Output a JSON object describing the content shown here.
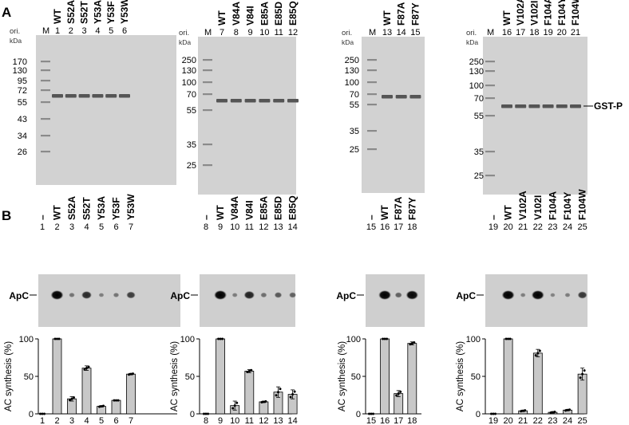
{
  "panelA": {
    "label": "A",
    "gst_label": "GST-P",
    "gels": [
      {
        "ori": "ori.",
        "kda": "kDa",
        "marker_lane": "M",
        "markers": [
          "170",
          "130",
          "95",
          "72",
          "55",
          "43",
          "34",
          "26"
        ],
        "lanes": [
          {
            "name": "WT",
            "num": "1"
          },
          {
            "name": "S52A",
            "num": "2"
          },
          {
            "name": "S52T",
            "num": "3"
          },
          {
            "name": "Y53A",
            "num": "4"
          },
          {
            "name": "Y53F",
            "num": "5"
          },
          {
            "name": "Y53W",
            "num": "6"
          }
        ]
      },
      {
        "ori": "ori.",
        "kda": "kDa",
        "marker_lane": "M",
        "markers": [
          "250",
          "130",
          "100",
          "70",
          "55",
          "35",
          "25"
        ],
        "lanes": [
          {
            "name": "WT",
            "num": "7"
          },
          {
            "name": "V84A",
            "num": "8"
          },
          {
            "name": "V84I",
            "num": "9"
          },
          {
            "name": "E85A",
            "num": "10"
          },
          {
            "name": "E85D",
            "num": "11"
          },
          {
            "name": "E85Q",
            "num": "12"
          }
        ]
      },
      {
        "ori": "ori.",
        "kda": "kDa",
        "marker_lane": "M",
        "markers": [
          "250",
          "130",
          "100",
          "70",
          "55",
          "35",
          "25"
        ],
        "lanes": [
          {
            "name": "WT",
            "num": "13"
          },
          {
            "name": "F87A",
            "num": "14"
          },
          {
            "name": "F87Y",
            "num": "15"
          }
        ]
      },
      {
        "ori": "ori.",
        "kda": "kDa",
        "marker_lane": "M",
        "markers": [
          "250",
          "130",
          "100",
          "70",
          "55",
          "35",
          "25"
        ],
        "lanes": [
          {
            "name": "WT",
            "num": "16"
          },
          {
            "name": "V102A",
            "num": "17"
          },
          {
            "name": "V102I",
            "num": "18"
          },
          {
            "name": "F104A",
            "num": "19"
          },
          {
            "name": "F104Y",
            "num": "20"
          },
          {
            "name": "F104W",
            "num": "21"
          }
        ]
      }
    ]
  },
  "panelB": {
    "label": "B",
    "band_label": "ApC",
    "ylabel": "AC synthesis (%)",
    "yticks": [
      "0",
      "50",
      "100"
    ],
    "groups": [
      {
        "lanes": [
          {
            "name": "–",
            "num": "1"
          },
          {
            "name": "WT",
            "num": "2"
          },
          {
            "name": "S52A",
            "num": "3"
          },
          {
            "name": "S52T",
            "num": "4"
          },
          {
            "name": "Y53A",
            "num": "5"
          },
          {
            "name": "Y53F",
            "num": "6"
          },
          {
            "name": "Y53W",
            "num": "7"
          }
        ],
        "spots": [
          0,
          1,
          0.15,
          0.7,
          0.08,
          0.15,
          0.55
        ]
      },
      {
        "lanes": [
          {
            "name": "–",
            "num": "8"
          },
          {
            "name": "WT",
            "num": "9"
          },
          {
            "name": "V84A",
            "num": "10"
          },
          {
            "name": "V84I",
            "num": "11"
          },
          {
            "name": "E85A",
            "num": "12"
          },
          {
            "name": "E85D",
            "num": "13"
          },
          {
            "name": "E85Q",
            "num": "14"
          }
        ],
        "spots": [
          0,
          1,
          0.1,
          0.75,
          0.2,
          0.35,
          0.3
        ]
      },
      {
        "lanes": [
          {
            "name": "–",
            "num": "15"
          },
          {
            "name": "WT",
            "num": "16"
          },
          {
            "name": "F87A",
            "num": "17"
          },
          {
            "name": "F87Y",
            "num": "18"
          }
        ],
        "spots": [
          0,
          1,
          0.3,
          0.95
        ]
      },
      {
        "lanes": [
          {
            "name": "–",
            "num": "19"
          },
          {
            "name": "WT",
            "num": "20"
          },
          {
            "name": "V102A",
            "num": "21"
          },
          {
            "name": "V102I",
            "num": "22"
          },
          {
            "name": "F104A",
            "num": "23"
          },
          {
            "name": "F104Y",
            "num": "24"
          },
          {
            "name": "F104W",
            "num": "25"
          }
        ],
        "spots": [
          0,
          1,
          0.08,
          1,
          0.05,
          0.1,
          0.6
        ]
      }
    ]
  },
  "chart_data": [
    {
      "type": "bar",
      "categories": [
        "1",
        "2",
        "3",
        "4",
        "5",
        "6",
        "7"
      ],
      "values": [
        0,
        100,
        20,
        61,
        10,
        18,
        53
      ],
      "errors": [
        0,
        0,
        3,
        3,
        1,
        0,
        1
      ],
      "ylabel": "AC synthesis (%)",
      "ylim": [
        0,
        100
      ]
    },
    {
      "type": "bar",
      "categories": [
        "8",
        "9",
        "10",
        "11",
        "12",
        "13",
        "14"
      ],
      "values": [
        0,
        100,
        11,
        57,
        16,
        29,
        26
      ],
      "errors": [
        0,
        0,
        6,
        2,
        1,
        7,
        6
      ],
      "ylabel": "AC synthesis (%)",
      "ylim": [
        0,
        100
      ]
    },
    {
      "type": "bar",
      "categories": [
        "15",
        "16",
        "17",
        "18"
      ],
      "values": [
        0,
        100,
        27,
        94
      ],
      "errors": [
        0,
        0,
        4,
        2
      ],
      "ylabel": "AC synthesis (%)",
      "ylim": [
        0,
        100
      ]
    },
    {
      "type": "bar",
      "categories": [
        "19",
        "20",
        "21",
        "22",
        "23",
        "24",
        "25"
      ],
      "values": [
        0,
        100,
        4,
        81,
        2,
        5,
        53
      ],
      "errors": [
        0,
        0,
        1,
        5,
        1,
        1,
        8
      ],
      "ylabel": "AC synthesis (%)",
      "ylim": [
        0,
        100
      ]
    }
  ]
}
